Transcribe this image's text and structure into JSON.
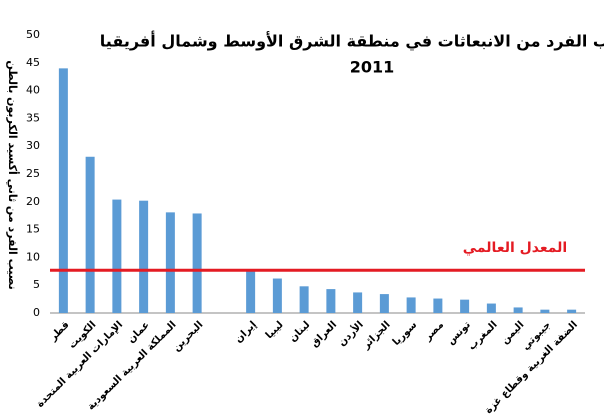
{
  "chart_data": {
    "type": "bar",
    "title": "نصيب الفرد من الانبعاثات في منطقة الشرق الأوسط وشمال أفريقيا،",
    "subtitle": "2011",
    "y_label": "نصيب الفرد من ثاني أكسيد الكربون بالطن",
    "categories": [
      "قطر",
      "الكويت",
      "الإمارات العربية المتحدة",
      "عمان",
      "المملكة العربية السعودية",
      "البحرين",
      null,
      "إيران",
      "ليبيا",
      "لبنان",
      "العراق",
      "الأردن",
      "الجزائر",
      "سوريا",
      "مصر",
      "تونس",
      "المغرب",
      "اليمن",
      "جيبوتي",
      "الضفة الغربية وقطاع غزة"
    ],
    "values": [
      44,
      28.1,
      20.4,
      20.2,
      18.1,
      17.9,
      null,
      7.6,
      6.2,
      4.8,
      4.3,
      3.7,
      3.4,
      2.8,
      2.6,
      2.4,
      1.7,
      1.0,
      0.6,
      0.6
    ],
    "color": "#5b9bd5",
    "ylim": [
      0,
      50
    ],
    "yticks": [
      0,
      5,
      10,
      15,
      20,
      25,
      30,
      35,
      40,
      45,
      50
    ],
    "grid": false,
    "reference_line": {
      "label": "المعدل العالمي",
      "value": 7.7,
      "color": "#e41b23"
    }
  }
}
